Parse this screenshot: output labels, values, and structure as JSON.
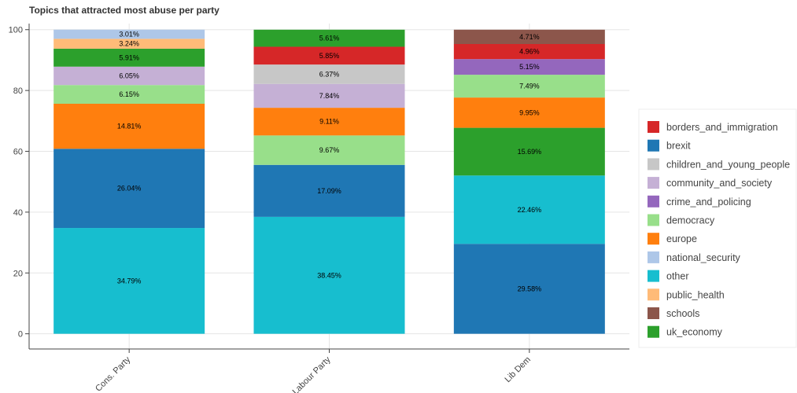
{
  "chart_data": {
    "type": "bar",
    "stacked": true,
    "title": "Topics that attracted most abuse per party",
    "xlabel": "",
    "ylabel": "",
    "ylim": [
      -5,
      102
    ],
    "yticks": [
      0,
      20,
      40,
      60,
      80,
      100
    ],
    "grid": true,
    "legend_position": "right",
    "categories": [
      "Cons. Party",
      "Labour Party",
      "Lib Dem"
    ],
    "series": [
      {
        "name": "borders_and_immigration",
        "color": "#d62728",
        "values": [
          null,
          5.85,
          4.96
        ],
        "labels": [
          "",
          "5.85%",
          "4.96%"
        ]
      },
      {
        "name": "brexit",
        "color": "#1f77b4",
        "values": [
          26.04,
          17.09,
          29.58
        ],
        "labels": [
          "26.04%",
          "17.09%",
          "29.58%"
        ]
      },
      {
        "name": "children_and_young_people",
        "color": "#c7c7c7",
        "values": [
          null,
          6.37,
          null
        ],
        "labels": [
          "",
          "6.37%",
          ""
        ]
      },
      {
        "name": "community_and_society",
        "color": "#c5b0d5",
        "values": [
          6.05,
          7.84,
          null
        ],
        "labels": [
          "6.05%",
          "7.84%",
          ""
        ]
      },
      {
        "name": "crime_and_policing",
        "color": "#9467bd",
        "values": [
          null,
          null,
          5.15
        ],
        "labels": [
          "",
          "",
          "5.15%"
        ]
      },
      {
        "name": "democracy",
        "color": "#98df8a",
        "values": [
          6.15,
          9.67,
          7.49
        ],
        "labels": [
          "6.15%",
          "9.67%",
          "7.49%"
        ]
      },
      {
        "name": "europe",
        "color": "#ff7f0e",
        "values": [
          14.81,
          9.11,
          9.95
        ],
        "labels": [
          "14.81%",
          "9.11%",
          "9.95%"
        ]
      },
      {
        "name": "national_security",
        "color": "#aec7e8",
        "values": [
          3.01,
          null,
          null
        ],
        "labels": [
          "3.01%",
          "",
          ""
        ]
      },
      {
        "name": "other",
        "color": "#17becf",
        "values": [
          34.79,
          38.45,
          22.46
        ],
        "labels": [
          "34.79%",
          "38.45%",
          "22.46%"
        ]
      },
      {
        "name": "public_health",
        "color": "#ffbb78",
        "values": [
          3.24,
          null,
          null
        ],
        "labels": [
          "3.24%",
          "",
          ""
        ]
      },
      {
        "name": "schools",
        "color": "#8c564b",
        "values": [
          null,
          null,
          4.71
        ],
        "labels": [
          "",
          "",
          "4.71%"
        ]
      },
      {
        "name": "uk_economy",
        "color": "#2ca02c",
        "values": [
          5.91,
          5.61,
          15.69
        ],
        "labels": [
          "5.91%",
          "5.61%",
          "15.69%"
        ]
      }
    ],
    "stack_order": [
      [
        "other",
        "brexit",
        "europe",
        "democracy",
        "community_and_society",
        "uk_economy",
        "public_health",
        "national_security"
      ],
      [
        "other",
        "brexit",
        "democracy",
        "europe",
        "community_and_society",
        "children_and_young_people",
        "borders_and_immigration",
        "uk_economy"
      ],
      [
        "brexit",
        "other",
        "uk_economy",
        "europe",
        "democracy",
        "crime_and_policing",
        "borders_and_immigration",
        "schools"
      ]
    ]
  }
}
